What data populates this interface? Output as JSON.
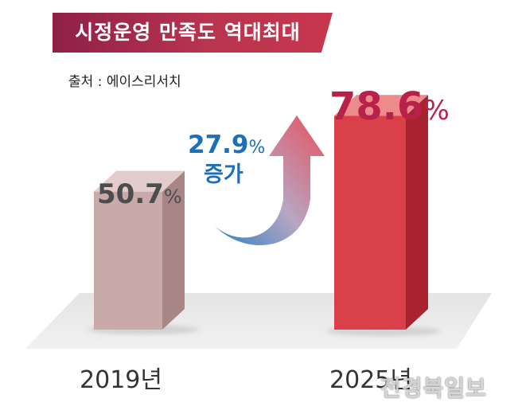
{
  "header": {
    "title": "시정운영 만족도 역대최대",
    "source": "출처 : 에이스리서치"
  },
  "chart_data": {
    "type": "bar",
    "categories": [
      "2019년",
      "2025년"
    ],
    "values": [
      50.7,
      78.6
    ],
    "value_labels": [
      "50.7",
      "78.6"
    ],
    "unit": "%",
    "ylim": [
      0,
      100
    ],
    "grid": false,
    "annotation": {
      "value": "27.9",
      "unit": "%",
      "text": "증가"
    },
    "colors": {
      "bar_2019": "#c9aaaa",
      "bar_2025": "#d9404a",
      "label_2019": "#4d4d4d",
      "label_2025": "#b8224a",
      "annotation": "#1d6fb8"
    }
  },
  "watermark": "전경북일보"
}
